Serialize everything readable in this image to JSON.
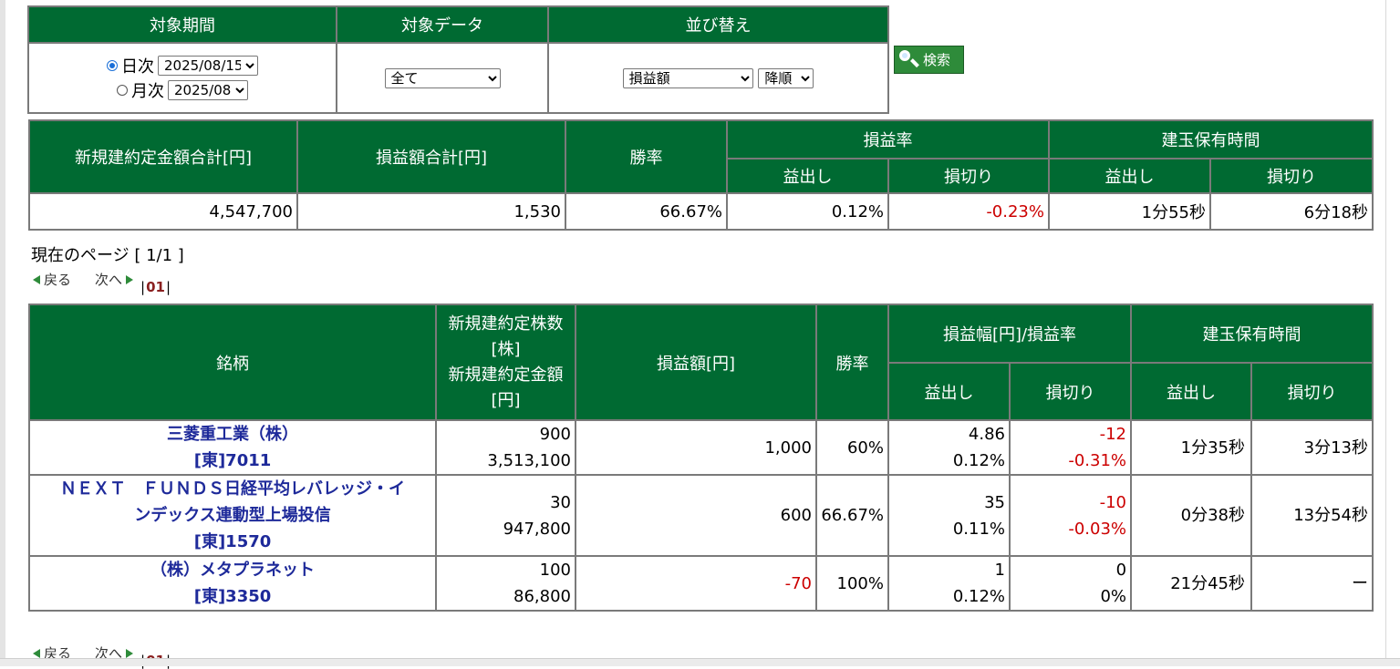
{
  "search": {
    "headers": [
      "対象期間",
      "対象データ",
      "並び替え"
    ],
    "period_daily_label": "日次",
    "period_daily_value": "2025/08/15",
    "period_monthly_label": "月次",
    "period_monthly_value": "2025/08",
    "period_selected": "daily",
    "data_value": "全て",
    "sort_key_value": "損益額",
    "sort_order_value": "降順",
    "button_label": "検索"
  },
  "summary": {
    "headers": {
      "new_amount_total": "新規建約定金額合計[円]",
      "pl_total": "損益額合計[円]",
      "win_rate": "勝率",
      "pl_rate": "損益率",
      "hold_time": "建玉保有時間",
      "profit": "益出し",
      "loss": "損切り"
    },
    "values": {
      "new_amount_total": "4,547,700",
      "pl_total": "1,530",
      "win_rate": "66.67%",
      "pl_rate_profit": "0.12%",
      "pl_rate_loss": "-0.23%",
      "hold_profit": "1分55秒",
      "hold_loss": "6分18秒"
    }
  },
  "pager": {
    "current_label": "現在のページ [ 1/1 ]",
    "prev": "戻る",
    "next": "次へ",
    "page": "01",
    "bar": "|"
  },
  "table": {
    "headers": {
      "name": "銘柄",
      "qty_line1": "新規建約定株数",
      "qty_line2": "[株]",
      "qty_line3": "新規建約定金額",
      "qty_line4": "[円]",
      "pl": "損益額[円]",
      "win_rate": "勝率",
      "pl_range": "損益幅[円]/損益率",
      "hold_time": "建玉保有時間",
      "profit": "益出し",
      "loss": "損切り"
    },
    "rows": [
      {
        "name_lines": [
          "三菱重工業（株）",
          "[東]7011"
        ],
        "qty": "900",
        "amount": "3,513,100",
        "pl": "1,000",
        "win_rate": "60%",
        "profit_range": "4.86",
        "profit_rate": "0.12%",
        "loss_range": "-12",
        "loss_rate": "-0.31%",
        "hold_profit": "1分35秒",
        "hold_loss": "3分13秒"
      },
      {
        "name_lines": [
          "ＮＥＸＴ　ＦＵＮＤＳ日経平均レバレッジ・イ",
          "ンデックス連動型上場投信",
          "[東]1570"
        ],
        "qty": "30",
        "amount": "947,800",
        "pl": "600",
        "win_rate": "66.67%",
        "profit_range": "35",
        "profit_rate": "0.11%",
        "loss_range": "-10",
        "loss_rate": "-0.03%",
        "hold_profit": "0分38秒",
        "hold_loss": "13分54秒"
      },
      {
        "name_lines": [
          "（株）メタプラネット",
          "[東]3350"
        ],
        "qty": "100",
        "amount": "86,800",
        "pl": "-70",
        "win_rate": "100%",
        "profit_range": "1",
        "profit_rate": "0.12%",
        "loss_range": "0",
        "loss_rate": "0%",
        "hold_profit": "21分45秒",
        "hold_loss": "ー"
      }
    ]
  },
  "colors": {
    "header_green": "#006a32",
    "negative_red": "#cc0000",
    "stock_link_blue": "#1e2a9a"
  }
}
